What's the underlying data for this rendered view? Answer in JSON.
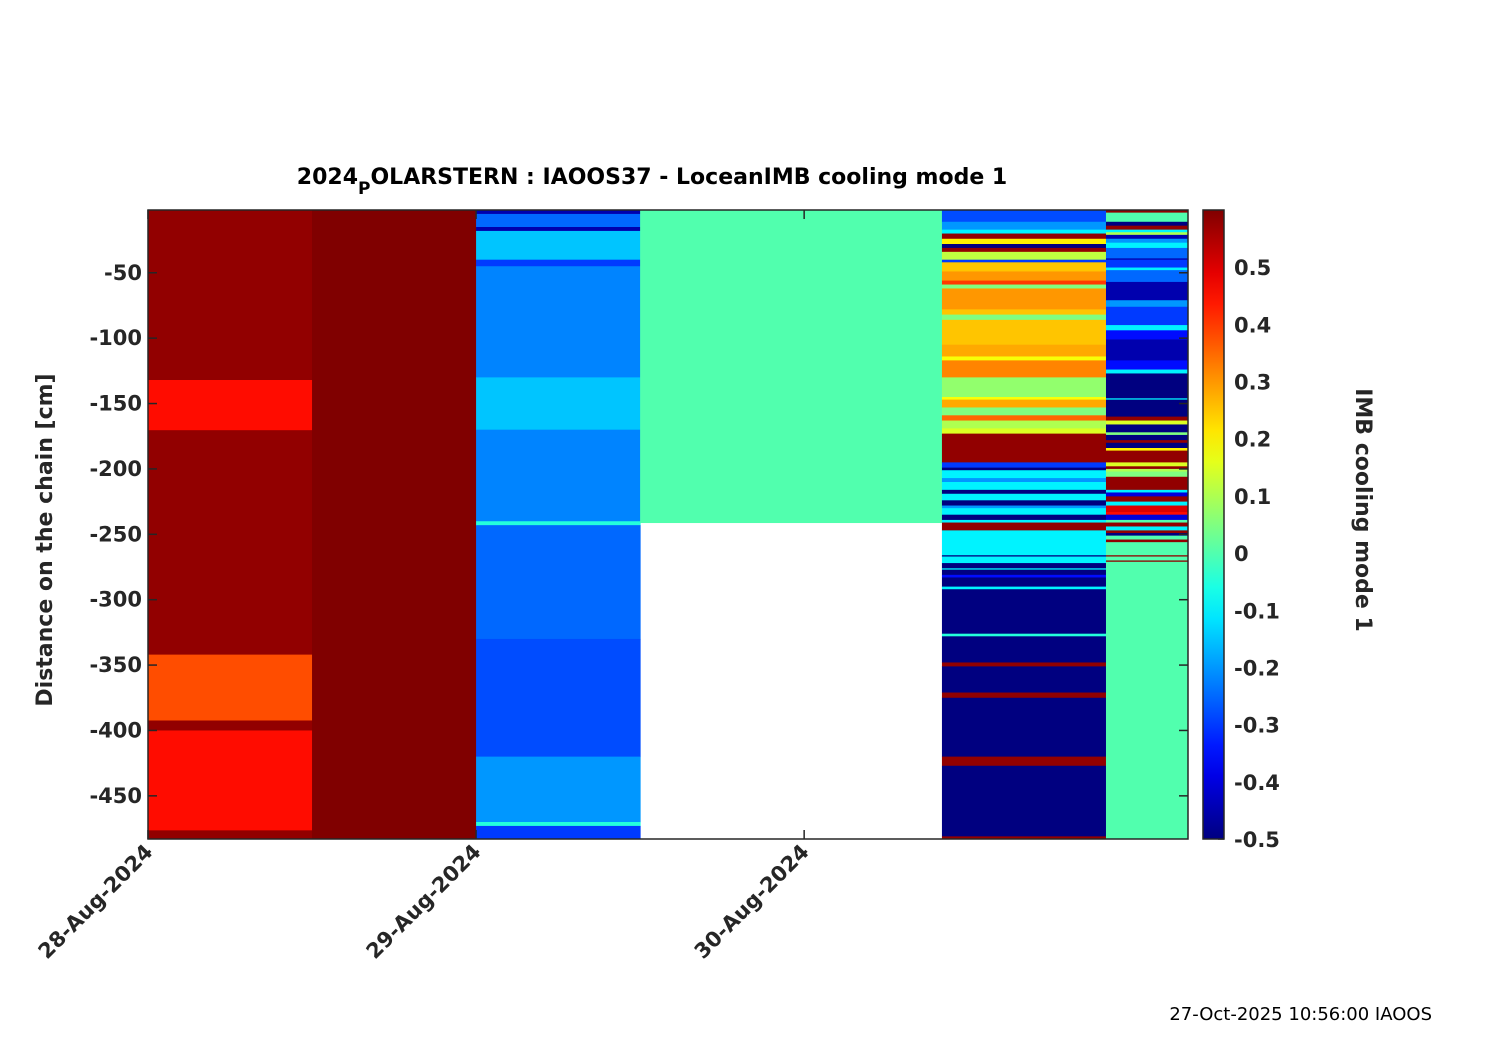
{
  "chart_data": {
    "type": "heatmap",
    "title_main": "2024",
    "title_sub": "P",
    "title_rest": "OLARSTERN : IAOOS37 - LoceanIMB cooling mode 1",
    "ylabel": "Distance on the chain [cm]",
    "colorbar_label": "IMB cooling mode 1",
    "colormap": "jet",
    "clim": [
      -0.5,
      0.6
    ],
    "ylim": [
      -483,
      -2
    ],
    "xlim_days_since_28Aug2024": [
      0,
      3.17
    ],
    "x_ticks": [
      {
        "day": 0,
        "label": "28-Aug-2024"
      },
      {
        "day": 1,
        "label": "29-Aug-2024"
      },
      {
        "day": 2,
        "label": "30-Aug-2024"
      }
    ],
    "y_ticks": [
      {
        "v": -50,
        "label": "-50"
      },
      {
        "v": -100,
        "label": "-100"
      },
      {
        "v": -150,
        "label": "-150"
      },
      {
        "v": -200,
        "label": "-200"
      },
      {
        "v": -250,
        "label": "-250"
      },
      {
        "v": -300,
        "label": "-300"
      },
      {
        "v": -350,
        "label": "-350"
      },
      {
        "v": -400,
        "label": "-400"
      },
      {
        "v": -450,
        "label": "-450"
      }
    ],
    "colorbar_ticks": [
      {
        "v": 0.5,
        "label": "0.5"
      },
      {
        "v": 0.4,
        "label": "0.4"
      },
      {
        "v": 0.3,
        "label": "0.3"
      },
      {
        "v": 0.2,
        "label": "0.2"
      },
      {
        "v": 0.1,
        "label": "0.1"
      },
      {
        "v": 0,
        "label": "0"
      },
      {
        "v": -0.1,
        "label": "-0.1"
      },
      {
        "v": -0.2,
        "label": "-0.2"
      },
      {
        "v": -0.3,
        "label": "-0.3"
      },
      {
        "v": -0.4,
        "label": "-0.4"
      },
      {
        "v": -0.5,
        "label": "-0.5"
      }
    ],
    "columns": [
      {
        "t0": 0,
        "t1": 0.5,
        "bands": [
          [
            -2,
            -483,
            0.58
          ],
          [
            -132,
            -170,
            0.45
          ],
          [
            -342,
            -392,
            0.38
          ],
          [
            -400,
            -476,
            0.45
          ]
        ]
      },
      {
        "t0": 0.5,
        "t1": 1.0,
        "bands": [
          [
            -2,
            -483,
            0.6
          ]
        ]
      },
      {
        "t0": 1.0,
        "t1": 1.5,
        "bands": [
          [
            -2,
            -5,
            -0.45
          ],
          [
            -5,
            -15,
            -0.25
          ],
          [
            -15,
            -18,
            -0.45
          ],
          [
            -18,
            -40,
            -0.15
          ],
          [
            -40,
            -45,
            -0.3
          ],
          [
            -45,
            -130,
            -0.22
          ],
          [
            -130,
            -170,
            -0.15
          ],
          [
            -170,
            -240,
            -0.22
          ],
          [
            -240,
            -243,
            -0.05
          ],
          [
            -243,
            -330,
            -0.25
          ],
          [
            -330,
            -420,
            -0.28
          ],
          [
            -420,
            -470,
            -0.2
          ],
          [
            -470,
            -473,
            -0.05
          ],
          [
            -473,
            -483,
            -0.3
          ]
        ]
      },
      {
        "t0": 1.5,
        "t1": 2.42,
        "bands": [
          [
            -2,
            -241,
            0.0
          ]
        ]
      },
      {
        "t0": 2.42,
        "t1": 2.92,
        "bands": [
          [
            -2,
            -11,
            -0.28
          ],
          [
            -11,
            -17,
            -0.2
          ],
          [
            -17,
            -20,
            -0.1
          ],
          [
            -20,
            -24,
            0.58
          ],
          [
            -24,
            -28,
            0.2
          ],
          [
            -28,
            -31,
            -0.5
          ],
          [
            -31,
            -34,
            0.58
          ],
          [
            -34,
            -40,
            0.12
          ],
          [
            -40,
            -42,
            -0.3
          ],
          [
            -42,
            -49,
            0.25
          ],
          [
            -49,
            -56,
            0.3
          ],
          [
            -56,
            -59,
            0.4
          ],
          [
            -59,
            -62,
            0.05
          ],
          [
            -62,
            -78,
            0.3
          ],
          [
            -78,
            -82,
            0.25
          ],
          [
            -82,
            -86,
            0.05
          ],
          [
            -86,
            -105,
            0.25
          ],
          [
            -105,
            -114,
            0.28
          ],
          [
            -114,
            -117,
            0.18
          ],
          [
            -117,
            -130,
            0.32
          ],
          [
            -130,
            -145,
            0.07
          ],
          [
            -145,
            -147,
            0.18
          ],
          [
            -147,
            -153,
            0.28
          ],
          [
            -153,
            -159,
            0.05
          ],
          [
            -159,
            -163,
            0.35
          ],
          [
            -163,
            -169,
            0.1
          ],
          [
            -169,
            -173,
            0.15
          ],
          [
            -173,
            -195,
            0.58
          ],
          [
            -195,
            -199,
            -0.3
          ],
          [
            -199,
            -201,
            -0.5
          ],
          [
            -201,
            -207,
            -0.1
          ],
          [
            -207,
            -210,
            -0.2
          ],
          [
            -210,
            -216,
            -0.1
          ],
          [
            -216,
            -219,
            -0.5
          ],
          [
            -219,
            -224,
            -0.1
          ],
          [
            -224,
            -228,
            -0.5
          ],
          [
            -228,
            -230,
            -0.2
          ],
          [
            -230,
            -235,
            -0.1
          ],
          [
            -235,
            -239,
            -0.5
          ],
          [
            -239,
            -241,
            -0.1
          ],
          [
            -241,
            -247,
            0.58
          ],
          [
            -247,
            -266,
            -0.1
          ],
          [
            -266,
            -267,
            -0.5
          ],
          [
            -267,
            -272,
            -0.1
          ],
          [
            -272,
            -276,
            -0.5
          ],
          [
            -276,
            -277,
            -0.1
          ],
          [
            -277,
            -281,
            -0.5
          ],
          [
            -281,
            -283,
            -0.35
          ],
          [
            -283,
            -290,
            -0.5
          ],
          [
            -290,
            -292,
            -0.1
          ],
          [
            -292,
            -326,
            -0.5
          ],
          [
            -326,
            -328,
            -0.05
          ],
          [
            -328,
            -348,
            -0.5
          ],
          [
            -348,
            -351,
            0.58
          ],
          [
            -351,
            -371,
            -0.5
          ],
          [
            -371,
            -375,
            0.58
          ],
          [
            -375,
            -420,
            -0.5
          ],
          [
            -420,
            -427,
            0.58
          ],
          [
            -427,
            -481,
            -0.5
          ],
          [
            -481,
            -483,
            0.58
          ]
        ]
      },
      {
        "t0": 2.92,
        "t1": 3.17,
        "bands": [
          [
            -2,
            -4,
            0.58
          ],
          [
            -4,
            -11,
            0.0
          ],
          [
            -11,
            -14,
            -0.5
          ],
          [
            -14,
            -17,
            0.58
          ],
          [
            -17,
            -19,
            -0.1
          ],
          [
            -19,
            -21,
            0.1
          ],
          [
            -21,
            -24,
            -0.45
          ],
          [
            -24,
            -27,
            -0.2
          ],
          [
            -27,
            -31,
            -0.1
          ],
          [
            -31,
            -39,
            -0.25
          ],
          [
            -39,
            -40,
            -0.45
          ],
          [
            -40,
            -46,
            -0.3
          ],
          [
            -46,
            -48,
            -0.1
          ],
          [
            -48,
            -57,
            -0.25
          ],
          [
            -57,
            -71,
            -0.45
          ],
          [
            -71,
            -76,
            -0.2
          ],
          [
            -76,
            -90,
            -0.3
          ],
          [
            -90,
            -94,
            -0.1
          ],
          [
            -94,
            -101,
            -0.35
          ],
          [
            -101,
            -117,
            -0.45
          ],
          [
            -117,
            -124,
            -0.35
          ],
          [
            -124,
            -127,
            -0.1
          ],
          [
            -127,
            -146,
            -0.5
          ],
          [
            -146,
            -147,
            -0.1
          ],
          [
            -147,
            -160,
            -0.5
          ],
          [
            -160,
            -163,
            0.58
          ],
          [
            -163,
            -166,
            0.15
          ],
          [
            -166,
            -172,
            -0.5
          ],
          [
            -172,
            -174,
            0.05
          ],
          [
            -174,
            -178,
            -0.5
          ],
          [
            -178,
            -180,
            0.58
          ],
          [
            -180,
            -184,
            -0.5
          ],
          [
            -184,
            -186,
            0.2
          ],
          [
            -186,
            -195,
            0.58
          ],
          [
            -195,
            -198,
            0.15
          ],
          [
            -198,
            -200,
            0.58
          ],
          [
            -200,
            -202,
            0.1
          ],
          [
            -202,
            -206,
            0.05
          ],
          [
            -206,
            -216,
            0.58
          ],
          [
            -216,
            -218,
            -0.1
          ],
          [
            -218,
            -221,
            -0.4
          ],
          [
            -221,
            -225,
            0.58
          ],
          [
            -225,
            -228,
            -0.1
          ],
          [
            -228,
            -233,
            0.5
          ],
          [
            -233,
            -235,
            0.45
          ],
          [
            -235,
            -239,
            -0.4
          ],
          [
            -239,
            -241,
            0.0
          ],
          [
            -241,
            -244,
            0.58
          ],
          [
            -244,
            -247,
            -0.1
          ],
          [
            -247,
            -249,
            0.58
          ],
          [
            -249,
            -251,
            -0.5
          ],
          [
            -251,
            -254,
            0.0
          ],
          [
            -254,
            -256,
            0.58
          ],
          [
            -256,
            -266,
            0.0
          ],
          [
            -266,
            -267,
            0.58
          ],
          [
            -267,
            -270,
            0.0
          ],
          [
            -270,
            -271,
            0.58
          ],
          [
            -271,
            -483,
            0.0
          ]
        ]
      }
    ]
  },
  "footer": "27-Oct-2025 10:56:00 IAOOS"
}
